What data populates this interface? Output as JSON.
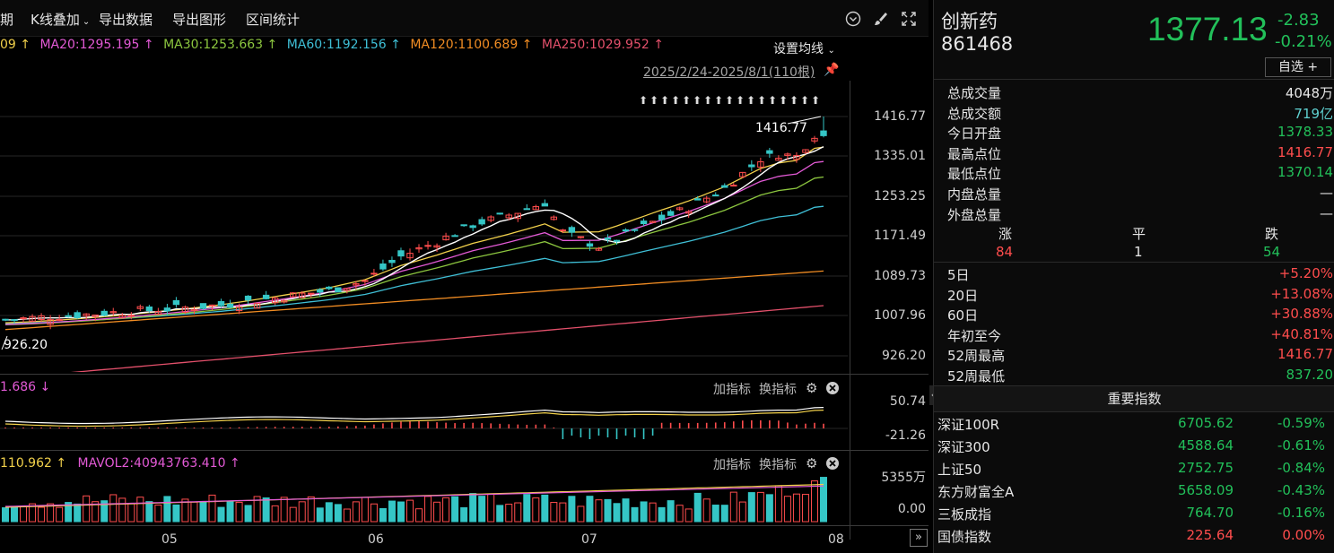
{
  "toolbar": {
    "period_label": "期",
    "kline_overlay": "K线叠加",
    "export_data": "导出数据",
    "export_chart": "导出图形",
    "range_stats": "区间统计"
  },
  "ma_legend": {
    "ma10": "09 ↑",
    "ma20": "MA20:1295.195 ↑",
    "ma30": "MA30:1253.663 ↑",
    "ma60": "MA60:1192.156 ↑",
    "ma120": "MA120:1100.689 ↑",
    "ma250": "MA250:1029.952 ↑",
    "set_ma": "设置均线"
  },
  "range_label": "2025/2/24-2025/8/1(110根)",
  "price_axis": [
    "1416.77",
    "1335.01",
    "1253.25",
    "1171.49",
    "1089.73",
    "1007.96",
    "926.20"
  ],
  "high_marker": "1416.77",
  "low_marker": "926.20",
  "macd_panel": {
    "legend": "1.686 ↓",
    "add": "加指标",
    "switch": "换指标",
    "axis_top": "50.74",
    "axis_bottom": "-21.26"
  },
  "vol_panel": {
    "legend1": "110.962 ↑",
    "legend2": "MAVOL2:40943763.410 ↑",
    "add": "加指标",
    "switch": "换指标",
    "axis_top": "5355万",
    "axis_bottom": "0.00"
  },
  "months": [
    "05",
    "06",
    "07",
    "08"
  ],
  "colors": {
    "up": "#ff4d4d",
    "down": "#35c6c6",
    "ma5": "#ffffff",
    "ma10": "#f2d14b",
    "ma20": "#e35ad6",
    "ma30": "#8cc63f",
    "ma60": "#3fbfd6",
    "ma120": "#f08c23",
    "ma250": "#e3506b"
  },
  "quote": {
    "name": "创新药",
    "code": "861468",
    "price": "1377.13",
    "change": "-2.83",
    "change_pct": "-0.21%",
    "watch": "自选 +"
  },
  "stats": [
    {
      "k": "总成交量",
      "v": "4048万",
      "cls": "white"
    },
    {
      "k": "总成交额",
      "v": "719亿",
      "cls": "teal"
    },
    {
      "k": "今日开盘",
      "v": "1378.33",
      "cls": "green"
    },
    {
      "k": "最高点位",
      "v": "1416.77",
      "cls": "red"
    },
    {
      "k": "最低点位",
      "v": "1370.14",
      "cls": "green"
    },
    {
      "k": "内盘总量",
      "v": "—",
      "cls": "white"
    },
    {
      "k": "外盘总量",
      "v": "—",
      "cls": "white"
    }
  ],
  "breadth": {
    "up_label": "涨",
    "flat_label": "平",
    "down_label": "跌",
    "up": "84",
    "flat": "1",
    "down": "54"
  },
  "returns": [
    {
      "k": "5日",
      "v": "+5.20%",
      "cls": "red"
    },
    {
      "k": "20日",
      "v": "+13.08%",
      "cls": "red"
    },
    {
      "k": "60日",
      "v": "+30.88%",
      "cls": "red"
    },
    {
      "k": "年初至今",
      "v": "+40.81%",
      "cls": "red"
    },
    {
      "k": "52周最高",
      "v": "1416.77",
      "cls": "red"
    },
    {
      "k": "52周最低",
      "v": "837.20",
      "cls": "green"
    }
  ],
  "indices_title": "重要指数",
  "indices": [
    {
      "n": "深证100R",
      "p": "6705.62",
      "c": "-0.59%",
      "pc": "green",
      "cc": "green"
    },
    {
      "n": "深证300",
      "p": "4588.64",
      "c": "-0.61%",
      "pc": "green",
      "cc": "green"
    },
    {
      "n": "上证50",
      "p": "2752.75",
      "c": "-0.84%",
      "pc": "green",
      "cc": "green"
    },
    {
      "n": "东方财富全A",
      "p": "5658.09",
      "c": "-0.43%",
      "pc": "green",
      "cc": "green"
    },
    {
      "n": "三板成指",
      "p": "764.70",
      "c": "-0.16%",
      "pc": "green",
      "cc": "green"
    },
    {
      "n": "国债指数",
      "p": "225.64",
      "c": "0.00%",
      "pc": "red",
      "cc": "red"
    }
  ]
}
